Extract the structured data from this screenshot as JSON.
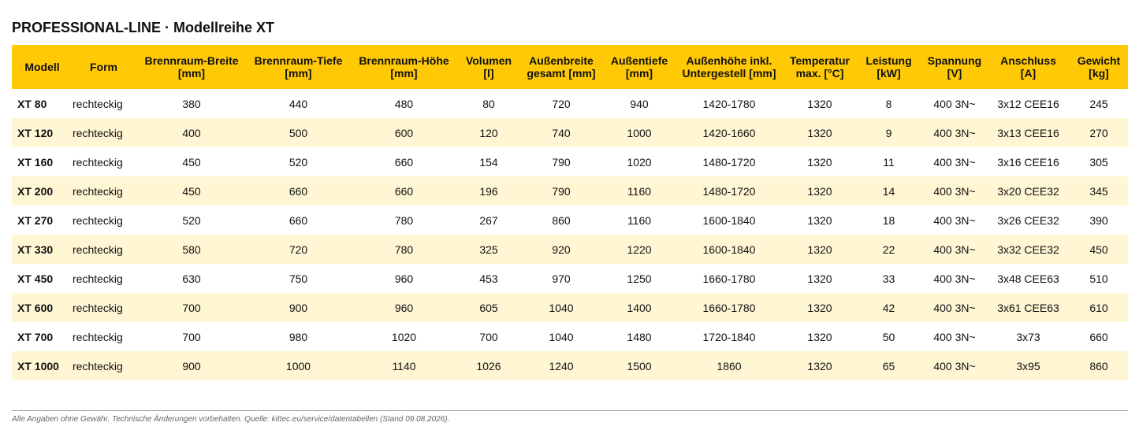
{
  "title": "PROFESSIONAL-LINE · Modellreihe XT",
  "columns": [
    {
      "l1": "Modell",
      "l2": ""
    },
    {
      "l1": "Form",
      "l2": ""
    },
    {
      "l1": "Brennraum-Breite",
      "l2": "[mm]"
    },
    {
      "l1": "Brennraum-Tiefe",
      "l2": "[mm]"
    },
    {
      "l1": "Brennraum-Höhe",
      "l2": "[mm]"
    },
    {
      "l1": "Volumen",
      "l2": "[l]"
    },
    {
      "l1": "Außenbreite",
      "l2": "gesamt [mm]"
    },
    {
      "l1": "Außentiefe",
      "l2": "[mm]"
    },
    {
      "l1": "Außenhöhe inkl.",
      "l2": "Untergestell [mm]"
    },
    {
      "l1": "Temperatur",
      "l2": "max. [°C]"
    },
    {
      "l1": "Leistung",
      "l2": "[kW]"
    },
    {
      "l1": "Spannung",
      "l2": "[V]"
    },
    {
      "l1": "Anschluss",
      "l2": "[A]"
    },
    {
      "l1": "Gewicht",
      "l2": "[kg]"
    }
  ],
  "rows": [
    [
      "XT 80",
      "rechteckig",
      "380",
      "440",
      "480",
      "80",
      "720",
      "940",
      "1420-1780",
      "1320",
      "8",
      "400 3N~",
      "3x12 CEE16",
      "245"
    ],
    [
      "XT 120",
      "rechteckig",
      "400",
      "500",
      "600",
      "120",
      "740",
      "1000",
      "1420-1660",
      "1320",
      "9",
      "400 3N~",
      "3x13 CEE16",
      "270"
    ],
    [
      "XT 160",
      "rechteckig",
      "450",
      "520",
      "660",
      "154",
      "790",
      "1020",
      "1480-1720",
      "1320",
      "11",
      "400 3N~",
      "3x16 CEE16",
      "305"
    ],
    [
      "XT 200",
      "rechteckig",
      "450",
      "660",
      "660",
      "196",
      "790",
      "1160",
      "1480-1720",
      "1320",
      "14",
      "400 3N~",
      "3x20 CEE32",
      "345"
    ],
    [
      "XT 270",
      "rechteckig",
      "520",
      "660",
      "780",
      "267",
      "860",
      "1160",
      "1600-1840",
      "1320",
      "18",
      "400 3N~",
      "3x26 CEE32",
      "390"
    ],
    [
      "XT 330",
      "rechteckig",
      "580",
      "720",
      "780",
      "325",
      "920",
      "1220",
      "1600-1840",
      "1320",
      "22",
      "400 3N~",
      "3x32 CEE32",
      "450"
    ],
    [
      "XT 450",
      "rechteckig",
      "630",
      "750",
      "960",
      "453",
      "970",
      "1250",
      "1660-1780",
      "1320",
      "33",
      "400 3N~",
      "3x48 CEE63",
      "510"
    ],
    [
      "XT 600",
      "rechteckig",
      "700",
      "900",
      "960",
      "605",
      "1040",
      "1400",
      "1660-1780",
      "1320",
      "42",
      "400 3N~",
      "3x61 CEE63",
      "610"
    ],
    [
      "XT 700",
      "rechteckig",
      "700",
      "980",
      "1020",
      "700",
      "1040",
      "1480",
      "1720-1840",
      "1320",
      "50",
      "400 3N~",
      "3x73",
      "660"
    ],
    [
      "XT 1000",
      "rechteckig",
      "900",
      "1000",
      "1140",
      "1026",
      "1240",
      "1500",
      "1860",
      "1320",
      "65",
      "400 3N~",
      "3x95",
      "860"
    ]
  ],
  "footer": "Alle Angaben ohne Gewähr. Technische Änderungen vorbehalten. Quelle: kittec.eu/service/datentabellen (Stand 09.08.2026).",
  "colors": {
    "header_bg": "#ffc905",
    "stripe_bg": "#fff6d4"
  }
}
